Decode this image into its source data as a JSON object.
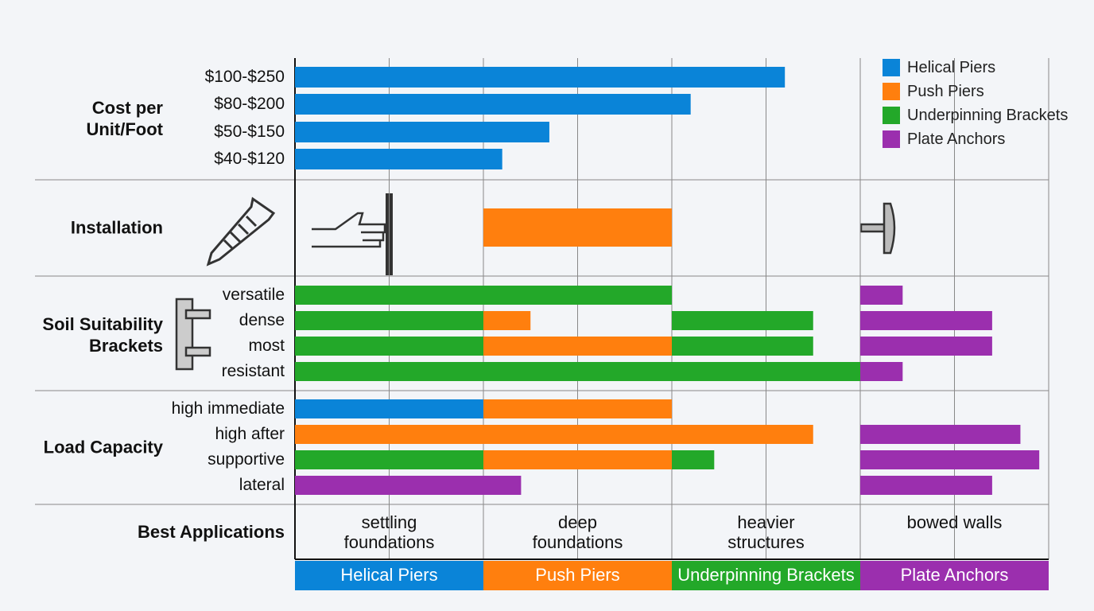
{
  "chart_data": {
    "type": "range-bar",
    "series": [
      {
        "name": "Helical Piers",
        "color": "#0a84d8"
      },
      {
        "name": "Push Piers",
        "color": "#ff7f0e"
      },
      {
        "name": "Underpinning Brackets",
        "color": "#23a829"
      },
      {
        "name": "Plate Anchors",
        "color": "#9b2fae"
      }
    ],
    "xlim": [
      0,
      8
    ],
    "xticks": [
      0,
      1,
      2,
      3,
      4,
      5,
      6,
      7,
      8
    ],
    "grid": true,
    "sections": [
      {
        "label": "Cost per Unit/Foot",
        "rows": [
          {
            "label": "$100-$250",
            "segments": [
              {
                "series": 0,
                "from": 0,
                "to": 5.2
              }
            ]
          },
          {
            "label": "$80-$200",
            "segments": [
              {
                "series": 0,
                "from": 0,
                "to": 4.2
              }
            ]
          },
          {
            "label": "$50-$150",
            "segments": [
              {
                "series": 0,
                "from": 0,
                "to": 2.7
              }
            ]
          },
          {
            "label": "$40-$120",
            "segments": [
              {
                "series": 0,
                "from": 0,
                "to": 2.2
              }
            ]
          }
        ]
      },
      {
        "label": "Installation",
        "rows": [
          {
            "segments": [
              {
                "series": 1,
                "from": 2,
                "to": 4
              }
            ]
          }
        ]
      },
      {
        "label": "Soil Suitability Brackets",
        "rows": [
          {
            "label": "versatile",
            "segments": [
              {
                "series": 2,
                "from": 0,
                "to": 4
              },
              {
                "series": 3,
                "from": 6,
                "to": 6.45
              }
            ]
          },
          {
            "label": "dense",
            "segments": [
              {
                "series": 2,
                "from": 0,
                "to": 2
              },
              {
                "series": 1,
                "from": 2,
                "to": 2.5
              },
              {
                "series": 2,
                "from": 4,
                "to": 5.5
              },
              {
                "series": 3,
                "from": 6,
                "to": 7.4
              }
            ]
          },
          {
            "label": "most",
            "segments": [
              {
                "series": 2,
                "from": 0,
                "to": 2
              },
              {
                "series": 1,
                "from": 2,
                "to": 4
              },
              {
                "series": 2,
                "from": 4,
                "to": 5.5
              },
              {
                "series": 3,
                "from": 6,
                "to": 7.4
              }
            ]
          },
          {
            "label": "resistant",
            "segments": [
              {
                "series": 2,
                "from": 0,
                "to": 6
              },
              {
                "series": 3,
                "from": 6,
                "to": 6.45
              }
            ]
          }
        ]
      },
      {
        "label": "Load Capacity",
        "rows": [
          {
            "label": "high immediate",
            "segments": [
              {
                "series": 0,
                "from": 0,
                "to": 2
              },
              {
                "series": 1,
                "from": 2,
                "to": 4
              }
            ]
          },
          {
            "label": "high after",
            "segments": [
              {
                "series": 1,
                "from": 0,
                "to": 5.5
              },
              {
                "series": 3,
                "from": 6,
                "to": 7.7
              }
            ]
          },
          {
            "label": "supportive",
            "segments": [
              {
                "series": 2,
                "from": 0,
                "to": 2
              },
              {
                "series": 1,
                "from": 2,
                "to": 4
              },
              {
                "series": 2,
                "from": 4,
                "to": 4.45
              },
              {
                "series": 3,
                "from": 6,
                "to": 7.9
              }
            ]
          },
          {
            "label": "lateral",
            "segments": [
              {
                "series": 3,
                "from": 0,
                "to": 2.4
              },
              {
                "series": 3,
                "from": 6,
                "to": 7.4
              }
            ]
          }
        ]
      }
    ],
    "applications": {
      "label": "Best Applications",
      "items": [
        "settling foundations",
        "deep foundations",
        "heavier structures",
        "bowed walls"
      ]
    }
  }
}
